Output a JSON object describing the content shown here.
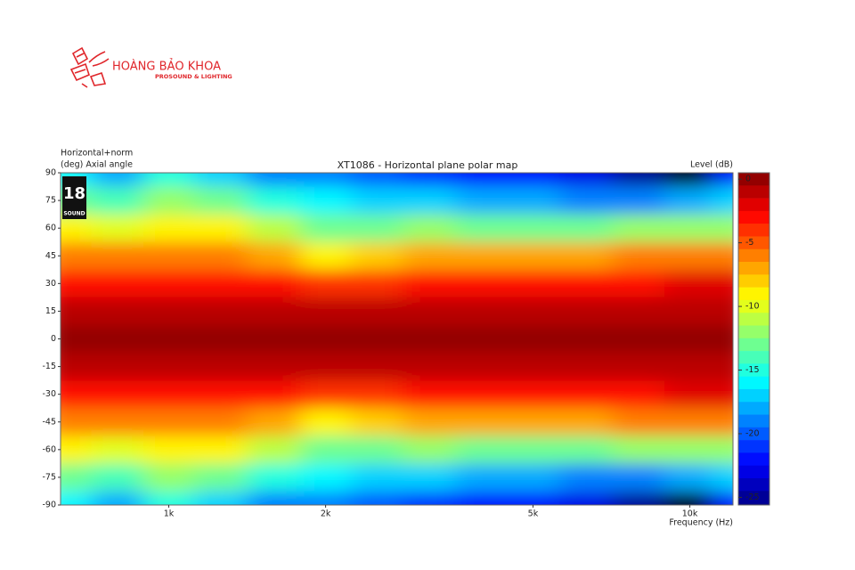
{
  "logo": {
    "name": "HOÀNG BẢO KHOA",
    "tagline": "PROSOUND & LIGHTING"
  },
  "badge": {
    "number": "18",
    "text": "SOUND"
  },
  "chart_data": {
    "type": "heatmap",
    "title": "XT1086 - Horizontal plane polar map",
    "ylabel_top": "Horizontal+norm",
    "ylabel": "(deg) Axial angle",
    "colorbar_label": "Level (dB)",
    "xlabel": "Frequency (Hz)",
    "log_x": true,
    "colormap": "jet",
    "x": [
      630,
      800,
      1000,
      1250,
      1600,
      2000,
      2500,
      3150,
      4000,
      5000,
      6300,
      8000,
      10000,
      12100
    ],
    "y": [
      90,
      75,
      60,
      45,
      30,
      15,
      0,
      -15,
      -30,
      -45,
      -60,
      -75,
      -90
    ],
    "z": [
      [
        -16,
        -18,
        -15,
        -17,
        -19,
        -19,
        -20,
        -21,
        -22,
        -22,
        -23,
        -25,
        -26,
        -22
      ],
      [
        -13,
        -14,
        -12,
        -13,
        -15,
        -16,
        -17,
        -17,
        -18,
        -18,
        -19,
        -19,
        -18,
        -17
      ],
      [
        -9,
        -10,
        -9,
        -9,
        -11,
        -13,
        -13,
        -12,
        -13,
        -13,
        -13,
        -12,
        -12,
        -12
      ],
      [
        -6,
        -6,
        -6,
        -6,
        -7,
        -9,
        -8,
        -7,
        -7,
        -7,
        -7,
        -6,
        -6,
        -6
      ],
      [
        -3,
        -3,
        -3,
        -3,
        -3,
        -4,
        -4,
        -3,
        -3,
        -3,
        -3,
        -3,
        -2,
        -2
      ],
      [
        -1,
        -1,
        -1,
        -1,
        -1,
        -1,
        -1,
        -1,
        -1,
        -1,
        -1,
        -1,
        -1,
        -1
      ],
      [
        0,
        0,
        0,
        0,
        0,
        0,
        0,
        0,
        0,
        0,
        0,
        0,
        0,
        0
      ],
      [
        -1,
        -1,
        -1,
        -1,
        -1,
        -1,
        -1,
        -1,
        -1,
        -1,
        -1,
        -1,
        -1,
        -1
      ],
      [
        -3,
        -3,
        -3,
        -3,
        -3,
        -4,
        -4,
        -3,
        -3,
        -3,
        -3,
        -3,
        -2,
        -2
      ],
      [
        -6,
        -6,
        -6,
        -6,
        -7,
        -9,
        -8,
        -7,
        -7,
        -7,
        -7,
        -6,
        -6,
        -6
      ],
      [
        -9,
        -10,
        -9,
        -9,
        -11,
        -13,
        -13,
        -12,
        -13,
        -13,
        -13,
        -12,
        -12,
        -12
      ],
      [
        -13,
        -14,
        -12,
        -13,
        -15,
        -16,
        -17,
        -17,
        -18,
        -18,
        -19,
        -19,
        -18,
        -17
      ],
      [
        -16,
        -18,
        -15,
        -17,
        -19,
        -19,
        -20,
        -21,
        -22,
        -22,
        -23,
        -25,
        -26,
        -22
      ]
    ],
    "xlim": [
      620,
      12100
    ],
    "xticks": [
      {
        "value": 1000,
        "label": "1k"
      },
      {
        "value": 2000,
        "label": "2k"
      },
      {
        "value": 5000,
        "label": "5k"
      },
      {
        "value": 10000,
        "label": "10k"
      }
    ],
    "ylim": [
      -90,
      90
    ],
    "yticks": [
      90,
      75,
      60,
      45,
      30,
      15,
      0,
      -15,
      -30,
      -45,
      -60,
      -75,
      -90
    ],
    "zlim": [
      -25.6,
      0.5
    ],
    "zticks": [
      0,
      -5,
      -10,
      -15,
      -20,
      -25
    ]
  }
}
